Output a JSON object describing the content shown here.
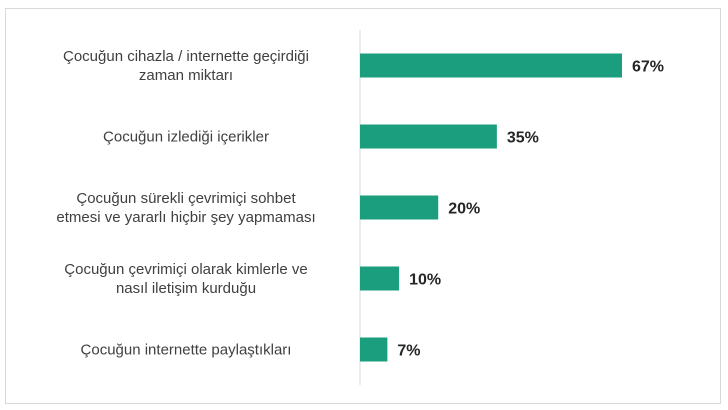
{
  "chart_data": {
    "type": "bar",
    "orientation": "horizontal",
    "categories": [
      [
        "Çocuğun cihazla / internette geçirdiği",
        "zaman miktarı"
      ],
      [
        "Çocuğun izlediği içerikler"
      ],
      [
        "Çocuğun sürekli çevrimiçi sohbet",
        "etmesi ve yararlı hiçbir şey yapmaması"
      ],
      [
        "Çocuğun çevrimiçi olarak kimlerle ve",
        "nasıl iletişim kurduğu"
      ],
      [
        "Çocuğun internette paylaştıkları"
      ]
    ],
    "values": [
      67,
      35,
      20,
      10,
      7
    ],
    "value_labels": [
      "67%",
      "35%",
      "20%",
      "10%",
      "7%"
    ],
    "xlim": [
      0,
      67
    ],
    "bar_color": "#1a9e7e",
    "axis_color": "#d9d9d9",
    "grid": false,
    "legend": "none"
  }
}
